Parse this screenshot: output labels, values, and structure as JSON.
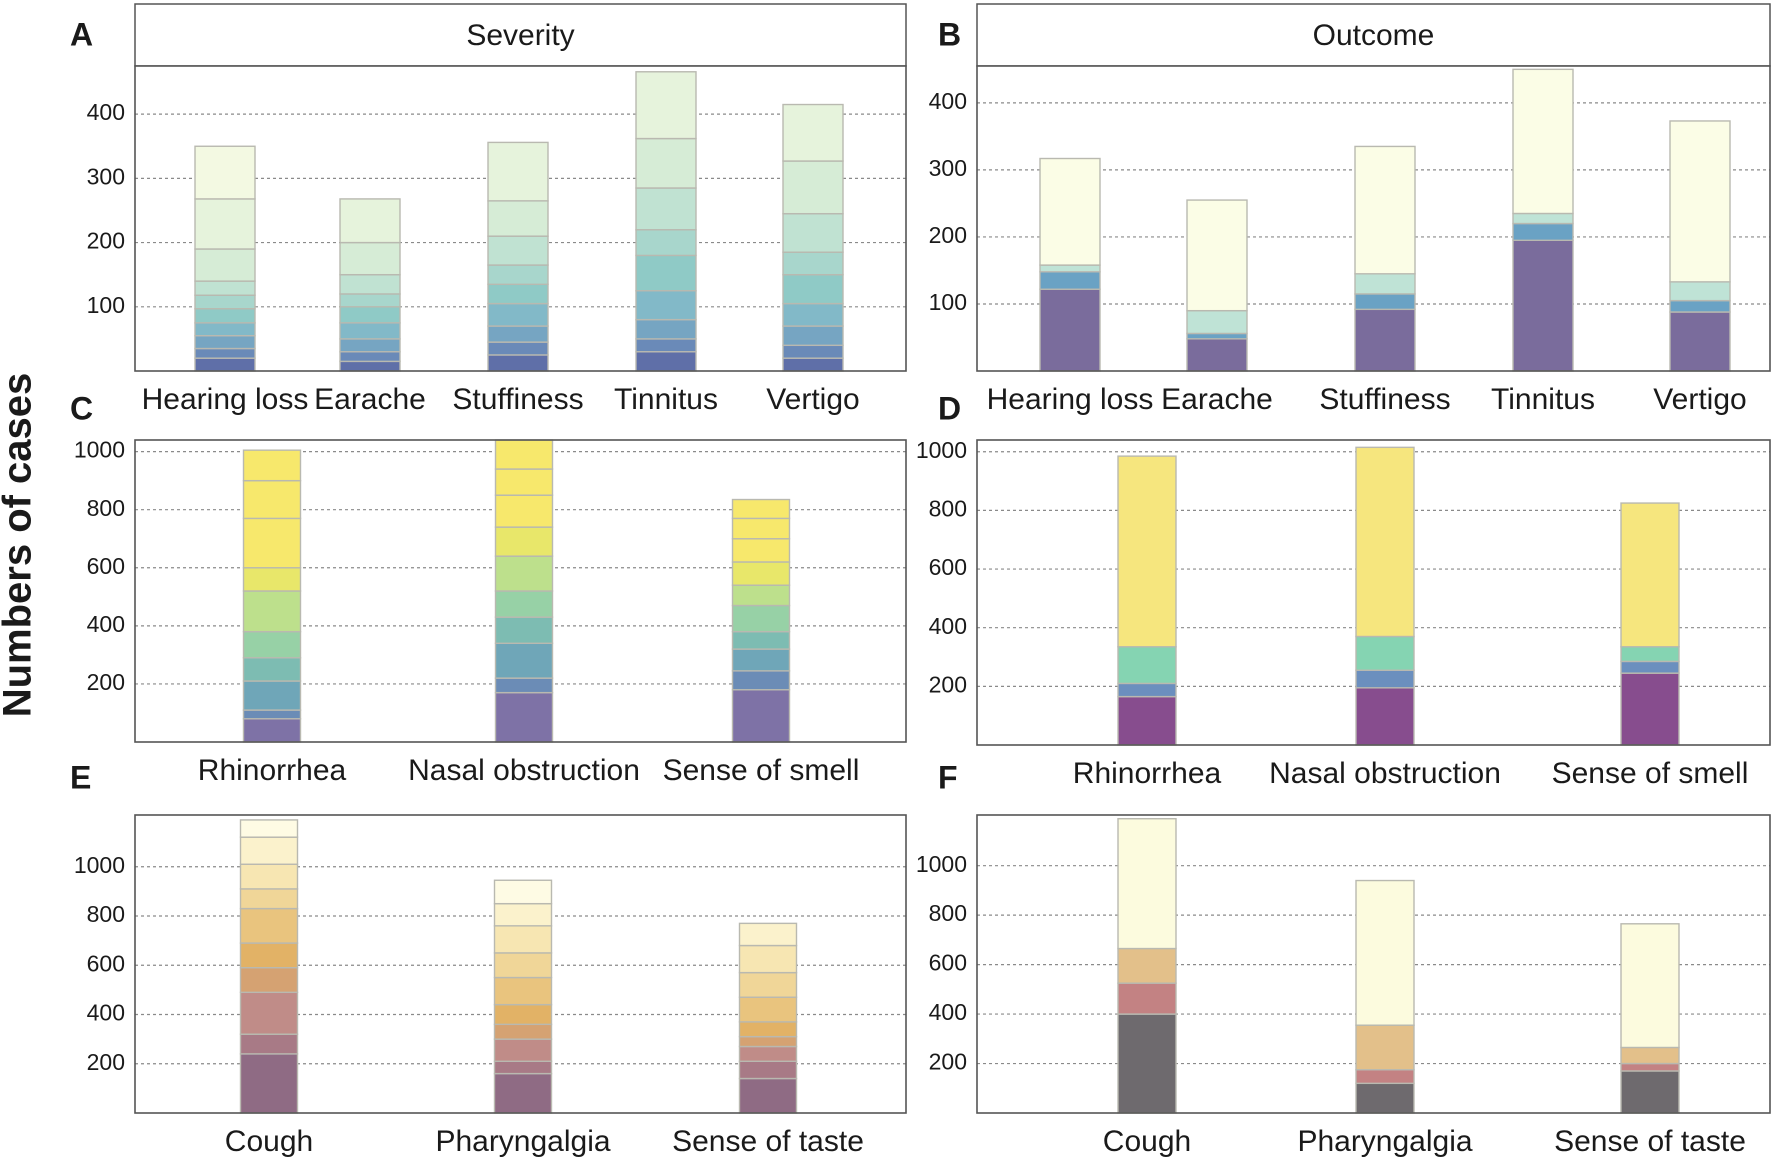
{
  "figure": {
    "ylabel": "Numbers of cases"
  },
  "chart_data": [
    {
      "panel": "A",
      "type": "bar",
      "stacked": true,
      "strip_title": "Severity",
      "categories": [
        "Hearing loss",
        "Earache",
        "Stuffiness",
        "Tinnitus",
        "Vertigo"
      ],
      "yticks": [
        100,
        200,
        300,
        400
      ],
      "ylim": [
        0,
        475
      ],
      "grid": true,
      "palette": [
        "#5f6fa8",
        "#6a8ab8",
        "#76a5c2",
        "#82b9c8",
        "#8fcac6",
        "#a8d6cc",
        "#c0e2d2",
        "#d6ecd6",
        "#e6f3dc",
        "#f3f9e2",
        "#fbfce6"
      ],
      "segment_boundaries": [
        [
          20,
          35,
          55,
          75,
          97,
          118,
          140,
          190,
          268,
          350
        ],
        [
          15,
          30,
          50,
          75,
          100,
          120,
          150,
          200,
          268
        ],
        [
          25,
          45,
          70,
          105,
          135,
          165,
          210,
          265,
          356
        ],
        [
          30,
          50,
          80,
          125,
          180,
          220,
          285,
          362,
          466
        ],
        [
          20,
          40,
          70,
          105,
          150,
          185,
          245,
          327,
          415
        ]
      ]
    },
    {
      "panel": "B",
      "type": "bar",
      "stacked": true,
      "strip_title": "Outcome",
      "categories": [
        "Hearing loss",
        "Earache",
        "Stuffiness",
        "Tinnitus",
        "Vertigo"
      ],
      "yticks": [
        100,
        200,
        300,
        400
      ],
      "ylim": [
        0,
        455
      ],
      "grid": true,
      "palette": [
        "#7a6c9c",
        "#6aa2c4",
        "#bfe3d6",
        "#fbfde6"
      ],
      "segment_boundaries": [
        [
          122,
          148,
          158,
          317
        ],
        [
          48,
          56,
          90,
          255
        ],
        [
          92,
          115,
          145,
          335
        ],
        [
          195,
          220,
          235,
          450
        ],
        [
          88,
          105,
          133,
          373
        ]
      ]
    },
    {
      "panel": "C",
      "type": "bar",
      "stacked": true,
      "categories": [
        "Rhinorrhea",
        "Nasal obstruction",
        "Sense of smell"
      ],
      "yticks": [
        200,
        400,
        600,
        800,
        1000
      ],
      "ylim": [
        0,
        1040
      ],
      "grid": true,
      "palette": [
        "#7e72a6",
        "#6b8cb6",
        "#6fa6b8",
        "#7dbcb2",
        "#97d1a6",
        "#bde08c",
        "#e8e76a",
        "#f7e86c"
      ],
      "segment_boundaries": [
        [
          80,
          110,
          210,
          290,
          380,
          520,
          600,
          770,
          900,
          1005
        ],
        [
          170,
          220,
          340,
          430,
          520,
          640,
          740,
          850,
          940,
          1040
        ],
        [
          180,
          245,
          320,
          380,
          470,
          540,
          620,
          700,
          770,
          835
        ]
      ]
    },
    {
      "panel": "D",
      "type": "bar",
      "stacked": true,
      "categories": [
        "Rhinorrhea",
        "Nasal obstruction",
        "Sense of smell"
      ],
      "yticks": [
        200,
        400,
        600,
        800,
        1000
      ],
      "ylim": [
        0,
        1040
      ],
      "grid": true,
      "palette": [
        "#874d8e",
        "#6b8fbe",
        "#85d4b2",
        "#f6e67e"
      ],
      "segment_boundaries": [
        [
          165,
          210,
          335,
          985
        ],
        [
          195,
          255,
          370,
          1015
        ],
        [
          245,
          285,
          335,
          825
        ]
      ]
    },
    {
      "panel": "E",
      "type": "bar",
      "stacked": true,
      "categories": [
        "Cough",
        "Pharyngalgia",
        "Sense of taste"
      ],
      "yticks": [
        200,
        400,
        600,
        800,
        1000
      ],
      "ylim": [
        0,
        1210
      ],
      "grid": true,
      "palette": [
        "#8f6b84",
        "#a87a86",
        "#c08c88",
        "#d5a272",
        "#e2b266",
        "#e9c47e",
        "#f0d698",
        "#f7e6b2",
        "#fbf2cc",
        "#fefbe4"
      ],
      "segment_boundaries": [
        [
          240,
          320,
          490,
          590,
          690,
          830,
          910,
          1010,
          1120,
          1190
        ],
        [
          160,
          210,
          300,
          360,
          440,
          550,
          650,
          760,
          850,
          945
        ],
        [
          140,
          210,
          270,
          310,
          370,
          470,
          570,
          680,
          770
        ]
      ]
    },
    {
      "panel": "F",
      "type": "bar",
      "stacked": true,
      "categories": [
        "Cough",
        "Pharyngalgia",
        "Sense of taste"
      ],
      "yticks": [
        200,
        400,
        600,
        800,
        1000
      ],
      "ylim": [
        0,
        1205
      ],
      "grid": true,
      "palette": [
        "#6e6a6e",
        "#c38283",
        "#e3c08a",
        "#fcfbde"
      ],
      "segment_boundaries": [
        [
          400,
          525,
          665,
          1190
        ],
        [
          120,
          175,
          355,
          940
        ],
        [
          170,
          200,
          265,
          765
        ]
      ]
    }
  ]
}
